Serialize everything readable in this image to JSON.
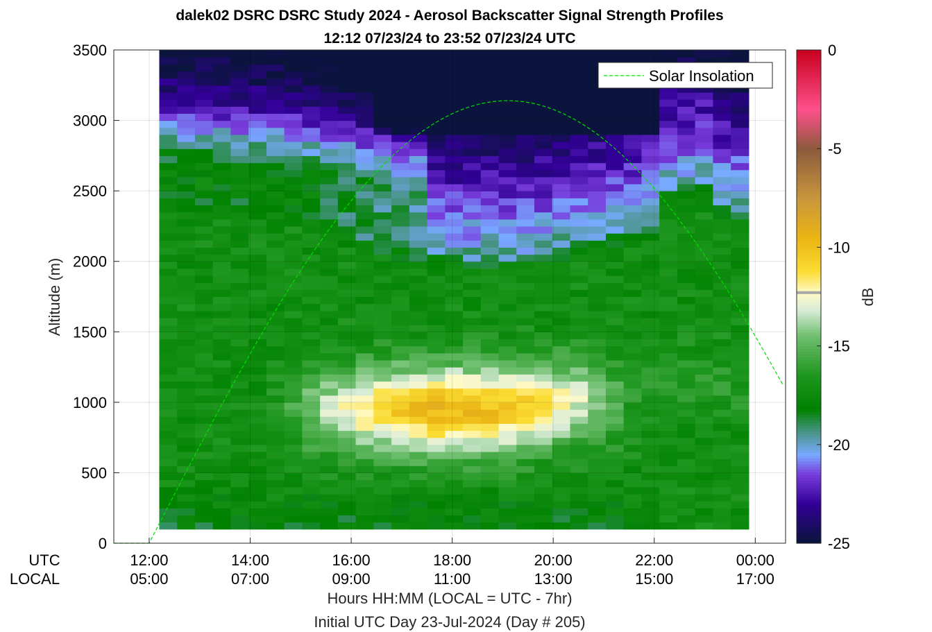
{
  "chart_data": {
    "type": "heatmap",
    "title": "dalek02 DSRC DSRC Study 2024 - Aerosol Backscatter Signal Strength Profiles",
    "subtitle": "12:12 07/23/24 to 23:52 07/23/24  UTC",
    "ylabel": "Altitude (m)",
    "xlabel": "Hours HH:MM  (LOCAL = UTC - 7hr)",
    "xlabel2": "Initial UTC Day 23-Jul-2024 (Day # 205)",
    "xrange_hours": [
      11.3,
      24.6
    ],
    "ylim": [
      0,
      3500
    ],
    "yticks": [
      0,
      500,
      1000,
      1500,
      2000,
      2500,
      3000,
      3500
    ],
    "xtick_hours": [
      12,
      14,
      16,
      18,
      20,
      22,
      24
    ],
    "x_row_labels": {
      "utc": "UTC",
      "local": "LOCAL"
    },
    "xticks_utc": [
      "12:00",
      "14:00",
      "16:00",
      "18:00",
      "20:00",
      "22:00",
      "00:00"
    ],
    "xticks_local": [
      "05:00",
      "07:00",
      "09:00",
      "11:00",
      "13:00",
      "15:00",
      "17:00"
    ],
    "data_extent": {
      "t_start_hours": 12.2,
      "t_end_hours": 23.87,
      "alt_min": 100,
      "alt_max": 3500
    },
    "grid": true,
    "colorbar": {
      "label": "dB",
      "range": [
        -25,
        0
      ],
      "ticks": [
        "0",
        "-5",
        "-10",
        "-15",
        "-20",
        "-25"
      ],
      "marker_value": -12.3
    },
    "legend": {
      "entries": [
        "Solar Insolation"
      ],
      "placement": "top-right"
    },
    "solar_insolation": {
      "rise_hours": 12.0,
      "peak_hours": 19.1,
      "peak_altitude": 3140
    },
    "features": {
      "boundary_layer_top_m": [
        2480,
        2460,
        2450,
        2440,
        2430,
        2420,
        2400,
        2380,
        2330,
        2270,
        2220,
        2170,
        2120,
        2080,
        2050,
        2040,
        2030,
        2020,
        2020,
        2010,
        2030,
        2060,
        2100,
        2130,
        2150,
        2180,
        2210,
        2260,
        2500,
        2520,
        2540,
        2400,
        2350
      ],
      "yellow_core_m": [
        1050,
        1000,
        950,
        950,
        950,
        1000,
        1000,
        1050
      ],
      "residual_layer_m": [
        2700,
        2600
      ]
    }
  }
}
